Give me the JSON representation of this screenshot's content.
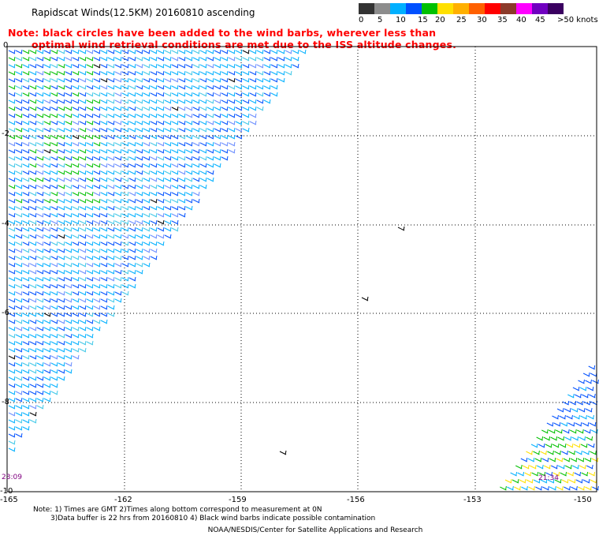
{
  "title": "Rapidscat Winds(12.5KM) 20160810 ascending",
  "note": {
    "line1": "Note: black circles have been added to the wind barbs, wherever less than",
    "line2": "optimal wind retrieval conditions are met due to the ISS altitude changes."
  },
  "legend": {
    "labels": [
      "0",
      "5",
      "10",
      "15",
      "20",
      "25",
      "30",
      "35",
      "40",
      "45",
      ">50 knots"
    ],
    "colors": [
      "#333333",
      "#8c8c8c",
      "#00b0ff",
      "#0050ff",
      "#00c000",
      "#ffe000",
      "#ffb000",
      "#ff6000",
      "#ff0000",
      "#8b3a2a",
      "#ff00ff",
      "#7000c0",
      "#3a0060"
    ]
  },
  "axes": {
    "x_ticks": [
      "-165",
      "-162",
      "-159",
      "-156",
      "-153",
      "-150"
    ],
    "y_ticks": [
      "0",
      "-2",
      "-4",
      "-6",
      "-8",
      "-10"
    ]
  },
  "time_labels": [
    "23:09",
    "21:34"
  ],
  "footer": {
    "line1": "Note: 1) Times are GMT 2)Times along bottom correspond to measurement at 0N",
    "line2": "3)Data buffer is 22 hrs from 20160810 4) Black wind barbs indicate possible contamination",
    "line3": "NOAA/NESDIS/Center for Satellite Applications and Research"
  }
}
